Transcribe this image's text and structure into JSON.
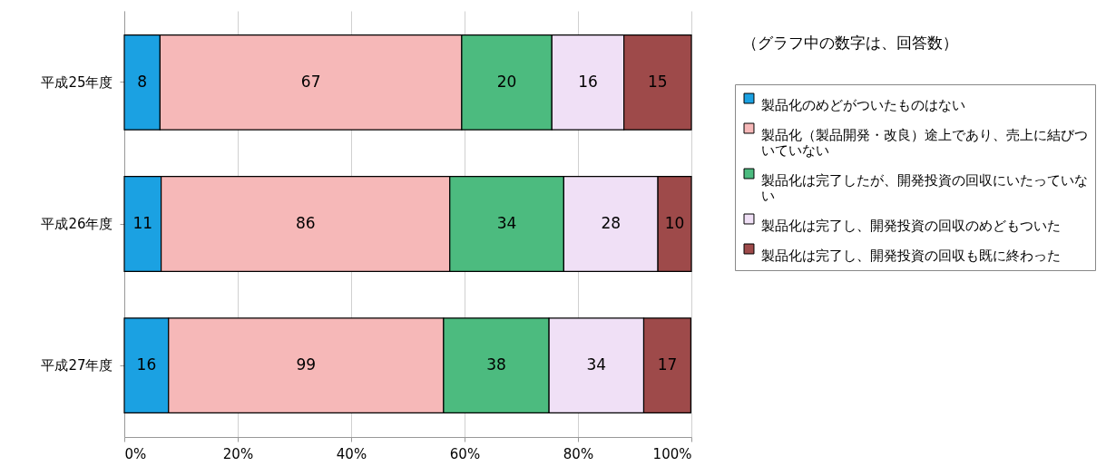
{
  "chart_data": {
    "type": "bar",
    "orientation": "horizontal",
    "stacked": true,
    "categories": [
      "平成25年度",
      "平成26年度",
      "平成27年度"
    ],
    "series": [
      {
        "name": "製品化のめどがついたものはない",
        "color": "#1ba1e2",
        "values": [
          6.3,
          6.5,
          7.8
        ]
      },
      {
        "name": "製品化（製品開発・改良）途上であり、売上に結びついていない",
        "color": "#f6b8b8",
        "values": [
          53.2,
          50.9,
          48.5
        ]
      },
      {
        "name": "製品化は完了したが、開発投資の回収にいたっていない",
        "color": "#4cbb7f",
        "values": [
          15.9,
          20.1,
          18.6
        ]
      },
      {
        "name": "製品化は完了し、開発投資の回収のめどもついた",
        "color": "#f0e0f6",
        "values": [
          12.7,
          16.6,
          16.7
        ]
      },
      {
        "name": "製品化は完了し、開発投資の回収も既に終わった",
        "color": "#9e4a4a",
        "values": [
          11.9,
          5.9,
          8.3
        ]
      }
    ],
    "xlim": [
      0,
      100
    ],
    "xticks": [
      {
        "value": 0,
        "label": "0%"
      },
      {
        "value": 20,
        "label": "20%"
      },
      {
        "value": 40,
        "label": "40%"
      },
      {
        "value": 60,
        "label": "60%"
      },
      {
        "value": 80,
        "label": "80%"
      },
      {
        "value": 100,
        "label": "100%"
      }
    ],
    "grid": "x",
    "legend": "right",
    "annotations": [
      "（グラフ中の数字は、回答数）",
      "8",
      "67",
      "20",
      "16",
      "15",
      "11",
      "86",
      "34",
      "28",
      "10",
      "16",
      "99",
      "38",
      "34",
      "17"
    ]
  }
}
